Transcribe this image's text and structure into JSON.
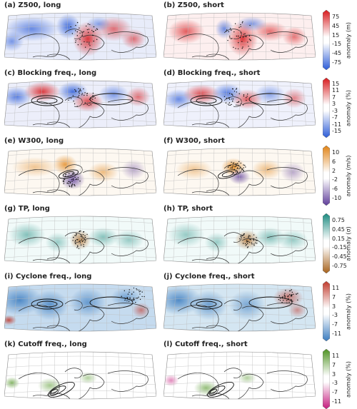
{
  "colors": {
    "red_strong": "#d7191c",
    "red_light": "#f4a6a6",
    "blue_strong": "#2b5bd7",
    "blue_light": "#a9bdf0",
    "orange": "#e08214",
    "purple": "#5e3c99",
    "teal": "#1b8a7f",
    "brown": "#a6611a",
    "cyclone_red": "#c0392b",
    "cyclone_blue": "#3a7bbf",
    "green": "#4d9221",
    "pink": "#c51b7d"
  },
  "chart_data": [
    {
      "type": "heatmap",
      "title": "(a) Z500, long"
    },
    {
      "type": "heatmap",
      "title": "(b) Z500, short"
    },
    {
      "type": "heatmap",
      "title": "(c) Blocking freq., long"
    },
    {
      "type": "heatmap",
      "title": "(d) Blocking freq., short"
    },
    {
      "type": "heatmap",
      "title": "(e) W300, long"
    },
    {
      "type": "heatmap",
      "title": "(f) W300, short"
    },
    {
      "type": "heatmap",
      "title": "(g) TP, long"
    },
    {
      "type": "heatmap",
      "title": "(h) TP, short"
    },
    {
      "type": "heatmap",
      "title": "(i) Cyclone freq., long"
    },
    {
      "type": "heatmap",
      "title": "(j) Cyclone freq., short"
    },
    {
      "type": "heatmap",
      "title": "(k) Cutoff freq., long"
    },
    {
      "type": "heatmap",
      "title": "(l) Cutoff freq., short"
    }
  ],
  "colorbars": [
    {
      "label": "anomaly (m)",
      "ticks": [
        "75",
        "45",
        "15",
        "-15",
        "-45",
        "-75"
      ],
      "low": "#2b5bd7",
      "high": "#d7191c"
    },
    {
      "label": "anomaly (%)",
      "ticks": [
        "15",
        "11",
        "7",
        "3",
        "-3",
        "-7",
        "-11",
        "-15"
      ],
      "low": "#2b5bd7",
      "high": "#d7191c"
    },
    {
      "label": "anomaly (m/s)",
      "ticks": [
        "10",
        "6",
        "2",
        "-2",
        "-6",
        "-10"
      ],
      "low": "#5e3c99",
      "high": "#e08214"
    },
    {
      "label": "anomaly (σ)",
      "ticks": [
        "0.75",
        "0.45",
        "0.15",
        "-0.15",
        "-0.45",
        "-0.75"
      ],
      "low": "#a6611a",
      "high": "#1b8a7f"
    },
    {
      "label": "anomaly (%)",
      "ticks": [
        "11",
        "7",
        "3",
        "-3",
        "-7",
        "-11"
      ],
      "low": "#3a7bbf",
      "high": "#c0392b"
    },
    {
      "label": "anomaly (%)",
      "ticks": [
        "11",
        "7",
        "3",
        "-3",
        "-7",
        "-11"
      ],
      "low": "#c51b7d",
      "high": "#4d9221"
    }
  ]
}
